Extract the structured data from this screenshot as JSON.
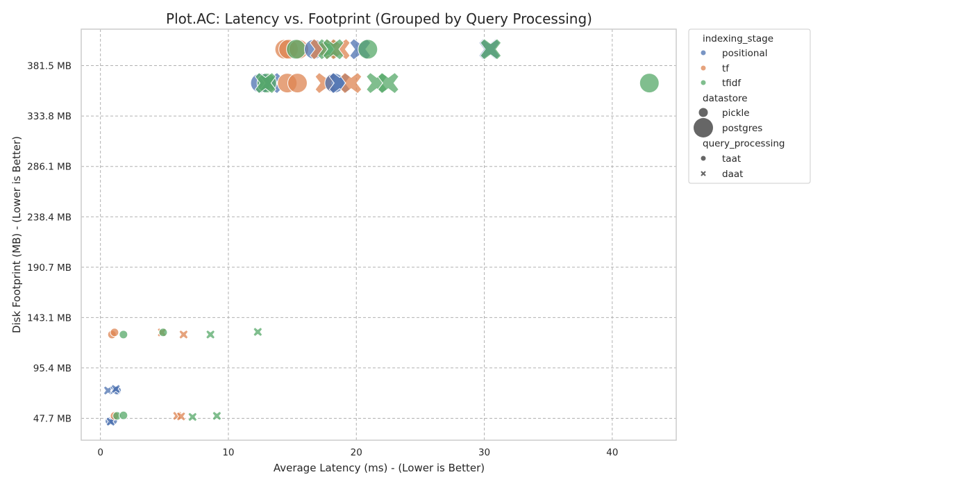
{
  "chart_data": {
    "type": "scatter",
    "title": "Plot.AC: Latency vs. Footprint (Grouped by Query Processing)",
    "xlabel": "Average Latency (ms) - (Lower is Better)",
    "ylabel": "Disk Footprint (MB) - (Lower is Better)",
    "xlim": [
      -1.5,
      45
    ],
    "ylim": [
      27,
      416
    ],
    "xticks": [
      0,
      10,
      20,
      30,
      40
    ],
    "yticks": [
      47.7,
      95.4,
      143.1,
      190.7,
      238.4,
      286.1,
      333.8,
      381.5
    ],
    "ytick_labels": [
      "47.7 MB",
      "95.4 MB",
      "143.1 MB",
      "190.7 MB",
      "238.4 MB",
      "286.1 MB",
      "333.8 MB",
      "381.5 MB"
    ],
    "grid": true,
    "legend_position": "outside-right",
    "legend": {
      "hue_title": "indexing_stage",
      "hue_entries": [
        {
          "name": "positional",
          "color": "#4c72b0"
        },
        {
          "name": "tf",
          "color": "#dd8452"
        },
        {
          "name": "tfidf",
          "color": "#55a868"
        }
      ],
      "size_title": "datastore",
      "size_entries": [
        "pickle",
        "postgres"
      ],
      "style_title": "query_processing",
      "style_entries": [
        {
          "name": "taat",
          "marker": "circle"
        },
        {
          "name": "daat",
          "marker": "x"
        }
      ]
    },
    "points": [
      {
        "x": 0.7,
        "y": 45,
        "stage": "positional",
        "store": "pickle",
        "qp": "taat"
      },
      {
        "x": 1.0,
        "y": 45.5,
        "stage": "positional",
        "store": "pickle",
        "qp": "taat"
      },
      {
        "x": 0.8,
        "y": 44.5,
        "stage": "positional",
        "store": "pickle",
        "qp": "daat"
      },
      {
        "x": 1.1,
        "y": 50,
        "stage": "tf",
        "store": "pickle",
        "qp": "taat"
      },
      {
        "x": 1.3,
        "y": 50,
        "stage": "tfidf",
        "store": "pickle",
        "qp": "taat"
      },
      {
        "x": 1.8,
        "y": 50.5,
        "stage": "tfidf",
        "store": "pickle",
        "qp": "taat"
      },
      {
        "x": 6.0,
        "y": 50,
        "stage": "tf",
        "store": "pickle",
        "qp": "daat"
      },
      {
        "x": 6.3,
        "y": 49.5,
        "stage": "tf",
        "store": "pickle",
        "qp": "daat"
      },
      {
        "x": 7.2,
        "y": 49,
        "stage": "tfidf",
        "store": "pickle",
        "qp": "daat"
      },
      {
        "x": 9.1,
        "y": 50,
        "stage": "tfidf",
        "store": "pickle",
        "qp": "daat"
      },
      {
        "x": 0.6,
        "y": 74,
        "stage": "positional",
        "store": "pickle",
        "qp": "daat"
      },
      {
        "x": 1.1,
        "y": 74.5,
        "stage": "positional",
        "store": "pickle",
        "qp": "daat"
      },
      {
        "x": 1.3,
        "y": 74,
        "stage": "positional",
        "store": "pickle",
        "qp": "taat"
      },
      {
        "x": 1.2,
        "y": 75.5,
        "stage": "positional",
        "store": "pickle",
        "qp": "daat"
      },
      {
        "x": 0.9,
        "y": 127,
        "stage": "tf",
        "store": "pickle",
        "qp": "taat"
      },
      {
        "x": 1.1,
        "y": 129,
        "stage": "tf",
        "store": "pickle",
        "qp": "taat"
      },
      {
        "x": 1.8,
        "y": 127,
        "stage": "tfidf",
        "store": "pickle",
        "qp": "taat"
      },
      {
        "x": 4.8,
        "y": 129,
        "stage": "tf",
        "store": "pickle",
        "qp": "daat"
      },
      {
        "x": 4.9,
        "y": 129,
        "stage": "tfidf",
        "store": "pickle",
        "qp": "taat"
      },
      {
        "x": 6.5,
        "y": 127,
        "stage": "tf",
        "store": "pickle",
        "qp": "daat"
      },
      {
        "x": 8.6,
        "y": 127,
        "stage": "tfidf",
        "store": "pickle",
        "qp": "daat"
      },
      {
        "x": 12.3,
        "y": 129.5,
        "stage": "tfidf",
        "store": "pickle",
        "qp": "daat"
      },
      {
        "x": 12.5,
        "y": 365,
        "stage": "positional",
        "store": "postgres",
        "qp": "taat"
      },
      {
        "x": 13.3,
        "y": 365,
        "stage": "positional",
        "store": "postgres",
        "qp": "daat"
      },
      {
        "x": 13.0,
        "y": 365,
        "stage": "tfidf",
        "store": "postgres",
        "qp": "taat"
      },
      {
        "x": 12.9,
        "y": 365,
        "stage": "tfidf",
        "store": "postgres",
        "qp": "daat"
      },
      {
        "x": 14.6,
        "y": 365,
        "stage": "tf",
        "store": "postgres",
        "qp": "taat"
      },
      {
        "x": 15.4,
        "y": 365,
        "stage": "tf",
        "store": "postgres",
        "qp": "taat"
      },
      {
        "x": 17.6,
        "y": 365,
        "stage": "tf",
        "store": "postgres",
        "qp": "daat"
      },
      {
        "x": 18.3,
        "y": 365,
        "stage": "positional",
        "store": "postgres",
        "qp": "taat"
      },
      {
        "x": 18.7,
        "y": 365,
        "stage": "positional",
        "store": "postgres",
        "qp": "daat"
      },
      {
        "x": 19.6,
        "y": 365,
        "stage": "tf",
        "store": "postgres",
        "qp": "daat"
      },
      {
        "x": 21.6,
        "y": 365,
        "stage": "tfidf",
        "store": "postgres",
        "qp": "daat"
      },
      {
        "x": 22.5,
        "y": 365,
        "stage": "tfidf",
        "store": "postgres",
        "qp": "daat"
      },
      {
        "x": 42.9,
        "y": 365,
        "stage": "tfidf",
        "store": "postgres",
        "qp": "taat"
      },
      {
        "x": 14.4,
        "y": 397,
        "stage": "tf",
        "store": "postgres",
        "qp": "taat"
      },
      {
        "x": 14.7,
        "y": 397,
        "stage": "tf",
        "store": "postgres",
        "qp": "taat"
      },
      {
        "x": 15.5,
        "y": 397,
        "stage": "tf",
        "store": "postgres",
        "qp": "taat"
      },
      {
        "x": 15.3,
        "y": 397,
        "stage": "tfidf",
        "store": "postgres",
        "qp": "taat"
      },
      {
        "x": 16.7,
        "y": 397,
        "stage": "positional",
        "store": "postgres",
        "qp": "taat"
      },
      {
        "x": 17.2,
        "y": 397,
        "stage": "tf",
        "store": "postgres",
        "qp": "daat"
      },
      {
        "x": 17.8,
        "y": 397,
        "stage": "tfidf",
        "store": "postgres",
        "qp": "daat"
      },
      {
        "x": 18.7,
        "y": 397,
        "stage": "tf",
        "store": "postgres",
        "qp": "daat"
      },
      {
        "x": 18.2,
        "y": 397,
        "stage": "tfidf",
        "store": "postgres",
        "qp": "daat"
      },
      {
        "x": 20.3,
        "y": 397,
        "stage": "positional",
        "store": "postgres",
        "qp": "daat"
      },
      {
        "x": 20.9,
        "y": 397,
        "stage": "tfidf",
        "store": "postgres",
        "qp": "taat"
      },
      {
        "x": 30.4,
        "y": 397,
        "stage": "positional",
        "store": "postgres",
        "qp": "daat"
      },
      {
        "x": 30.5,
        "y": 397,
        "stage": "tfidf",
        "store": "postgres",
        "qp": "daat"
      }
    ]
  }
}
